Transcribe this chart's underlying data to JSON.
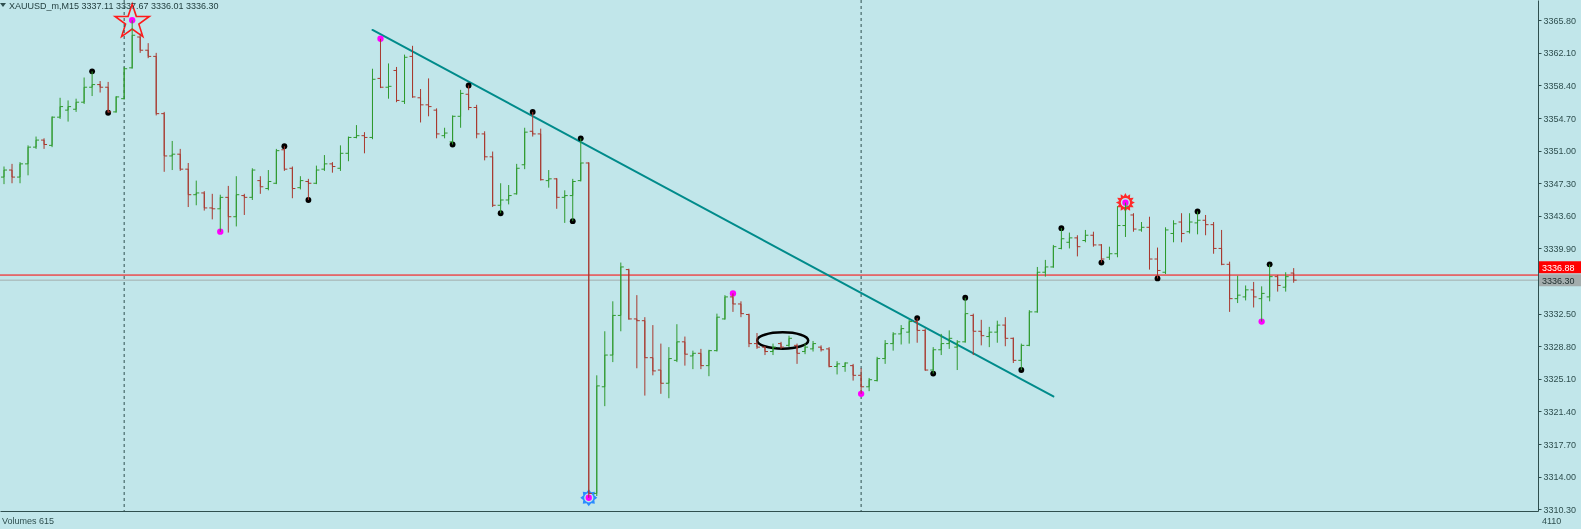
{
  "chart_data": {
    "type": "candlestick",
    "title": "XAUUSD_m,M15  3337.11 3337.67 3336.01 3336.30",
    "categories": [
      null,
      null,
      null,
      null,
      null,
      null,
      null,
      null,
      null,
      null,
      null,
      null,
      null,
      null,
      null,
      null,
      null,
      null,
      null,
      null,
      null,
      null,
      null,
      null,
      null,
      null,
      null,
      null,
      null,
      null,
      null,
      null,
      null,
      null,
      null,
      null,
      null,
      null,
      null,
      null,
      null,
      null,
      null,
      null,
      null,
      null,
      null,
      null,
      null,
      null,
      null,
      null,
      null,
      null,
      null,
      null,
      null,
      null,
      null,
      null,
      null,
      null,
      null,
      null,
      null,
      null,
      null,
      null,
      null,
      null,
      null,
      null,
      null,
      null,
      null,
      null,
      null,
      null,
      null,
      null,
      null,
      null,
      null,
      null,
      null,
      null,
      null,
      null,
      null,
      null,
      null,
      null,
      null,
      null,
      null,
      null,
      null,
      null,
      null,
      null,
      null,
      null,
      null,
      null,
      null,
      null,
      null,
      null,
      null,
      null,
      null,
      null,
      null,
      null,
      null,
      null,
      null,
      null,
      null,
      null,
      null,
      null,
      null,
      null,
      null,
      null,
      null,
      null,
      null,
      null,
      null,
      null,
      null,
      null,
      null,
      null,
      null,
      null,
      null,
      null,
      null,
      null,
      null,
      null,
      null,
      null,
      null,
      null,
      null,
      null,
      null,
      null,
      null,
      null,
      null,
      null,
      null,
      null,
      null,
      null,
      null,
      null,
      null,
      null,
      null,
      null,
      null,
      null,
      null,
      null,
      null,
      null,
      null,
      null,
      null,
      null,
      null,
      null,
      null,
      null,
      null,
      null,
      null,
      null,
      null,
      null,
      null,
      null,
      null,
      null,
      null,
      null
    ],
    "ohlc": [
      [
        3348.0,
        3349.2,
        3347.2,
        3348.8
      ],
      [
        3348.8,
        3349.5,
        3347.3,
        3348.0
      ],
      [
        3348.0,
        3349.7,
        3347.3,
        3349.5
      ],
      [
        3349.5,
        3351.6,
        3348.2,
        3351.4
      ],
      [
        3351.4,
        3352.6,
        3351.2,
        3352.2
      ],
      [
        3352.2,
        3352.4,
        3351.2,
        3351.7
      ],
      [
        3351.6,
        3354.9,
        3351.4,
        3354.8
      ],
      [
        3354.8,
        3357.0,
        3354.6,
        3356.0
      ],
      [
        3355.6,
        3356.7,
        3354.3,
        3356.0
      ],
      [
        3355.7,
        3356.9,
        3355.4,
        3356.5
      ],
      [
        3356.5,
        3359.3,
        3356.3,
        3358.2
      ],
      [
        3358.2,
        3360.0,
        3357.2,
        3358.5
      ],
      [
        3358.5,
        3358.9,
        3357.6,
        3358.2
      ],
      [
        3358.2,
        3358.8,
        3355.3,
        3355.4
      ],
      [
        3355.4,
        3357.2,
        3355.3,
        3357.1
      ],
      [
        3356.9,
        3360.5,
        3356.8,
        3360.3
      ],
      [
        3360.4,
        3365.8,
        3360.3,
        3364.1
      ],
      [
        3363.9,
        3364.3,
        3362.1,
        3362.4
      ],
      [
        3362.4,
        3363.2,
        3361.5,
        3361.7
      ],
      [
        3361.7,
        3362.1,
        3355.0,
        3355.2
      ],
      [
        3355.2,
        3355.4,
        3348.6,
        3350.4
      ],
      [
        3350.4,
        3352.1,
        3348.8,
        3350.6
      ],
      [
        3350.6,
        3351.2,
        3348.7,
        3348.9
      ],
      [
        3348.9,
        3349.6,
        3344.6,
        3346.0
      ],
      [
        3346.0,
        3347.6,
        3344.8,
        3346.2
      ],
      [
        3346.2,
        3346.4,
        3344.2,
        3344.5
      ],
      [
        3344.5,
        3346.1,
        3343.2,
        3344.4
      ],
      [
        3344.4,
        3346.0,
        3341.8,
        3345.7
      ],
      [
        3345.7,
        3347.0,
        3341.7,
        3343.5
      ],
      [
        3343.5,
        3348.1,
        3342.4,
        3346.0
      ],
      [
        3345.9,
        3346.1,
        3343.7,
        3345.7
      ],
      [
        3345.7,
        3349.0,
        3345.4,
        3348.8
      ],
      [
        3347.6,
        3348.1,
        3346.1,
        3346.9
      ],
      [
        3346.7,
        3348.8,
        3346.5,
        3347.5
      ],
      [
        3347.3,
        3351.2,
        3347.2,
        3351.0
      ],
      [
        3351.1,
        3351.5,
        3348.7,
        3348.9
      ],
      [
        3349.0,
        3349.2,
        3345.6,
        3346.7
      ],
      [
        3346.8,
        3348.1,
        3346.6,
        3347.6
      ],
      [
        3347.5,
        3347.8,
        3345.4,
        3347.3
      ],
      [
        3347.3,
        3349.3,
        3347.2,
        3348.8
      ],
      [
        3348.9,
        3350.5,
        3348.7,
        3349.5
      ],
      [
        3349.5,
        3349.7,
        3348.5,
        3349.2
      ],
      [
        3349.0,
        3351.6,
        3348.7,
        3350.7
      ],
      [
        3350.7,
        3352.6,
        3349.8,
        3352.5
      ],
      [
        3352.5,
        3353.9,
        3352.4,
        3352.7
      ],
      [
        3352.7,
        3353.1,
        3350.7,
        3352.5
      ],
      [
        3352.5,
        3360.3,
        3352.3,
        3359.1
      ],
      [
        3359.2,
        3363.7,
        3358.1,
        3358.2
      ],
      [
        3358.2,
        3360.9,
        3356.9,
        3358.3
      ],
      [
        3360.1,
        3360.5,
        3356.5,
        3356.7
      ],
      [
        3356.6,
        3361.9,
        3356.3,
        3361.6
      ],
      [
        3361.7,
        3362.9,
        3357.0,
        3357.1
      ],
      [
        3357.0,
        3358.0,
        3354.2,
        3356.2
      ],
      [
        3356.2,
        3359.2,
        3354.9,
        3356.0
      ],
      [
        3355.6,
        3355.8,
        3352.4,
        3352.9
      ],
      [
        3352.7,
        3353.6,
        3352.4,
        3353.0
      ],
      [
        3352.0,
        3355.0,
        3351.7,
        3354.9
      ],
      [
        3354.9,
        3357.9,
        3353.6,
        3357.5
      ],
      [
        3357.4,
        3358.4,
        3355.6,
        3355.9
      ],
      [
        3355.9,
        3356.2,
        3352.4,
        3352.9
      ],
      [
        3352.9,
        3353.2,
        3349.9,
        3350.3
      ],
      [
        3350.3,
        3350.9,
        3344.6,
        3344.8
      ],
      [
        3344.8,
        3347.3,
        3343.9,
        3345.4
      ],
      [
        3345.4,
        3347.1,
        3344.9,
        3345.9
      ],
      [
        3346.1,
        3349.5,
        3346.0,
        3349.0
      ],
      [
        3349.4,
        3353.6,
        3348.9,
        3353.1
      ],
      [
        3353.2,
        3355.4,
        3352.6,
        3352.9
      ],
      [
        3352.9,
        3353.5,
        3347.6,
        3347.7
      ],
      [
        3347.6,
        3348.8,
        3346.8,
        3347.8
      ],
      [
        3347.8,
        3347.9,
        3344.4,
        3345.7
      ],
      [
        3345.7,
        3346.5,
        3342.8,
        3345.9
      ],
      [
        3345.9,
        3347.8,
        3343.0,
        3347.5
      ],
      [
        3347.6,
        3352.4,
        3347.5,
        3349.6
      ],
      [
        3349.6,
        3349.7,
        3311.6,
        3312.1
      ],
      [
        3312.1,
        3325.5,
        3311.8,
        3324.3
      ],
      [
        3324.2,
        3330.5,
        3322.0,
        3327.8
      ],
      [
        3327.8,
        3333.9,
        3327.0,
        3332.3
      ],
      [
        3332.3,
        3338.3,
        3330.5,
        3337.8
      ],
      [
        3337.5,
        3337.6,
        3331.8,
        3331.9
      ],
      [
        3331.9,
        3334.6,
        3326.3,
        3331.7
      ],
      [
        3331.7,
        3332.1,
        3323.2,
        3327.5
      ],
      [
        3327.5,
        3331.2,
        3325.5,
        3326.0
      ],
      [
        3326.1,
        3329.1,
        3323.4,
        3324.6
      ],
      [
        3324.6,
        3328.7,
        3322.9,
        3327.4
      ],
      [
        3327.2,
        3331.3,
        3327.0,
        3329.3
      ],
      [
        3329.3,
        3329.9,
        3326.6,
        3327.9
      ],
      [
        3327.7,
        3328.3,
        3326.2,
        3328.0
      ],
      [
        3328.0,
        3328.5,
        3326.2,
        3326.6
      ],
      [
        3326.6,
        3328.4,
        3325.4,
        3328.3
      ],
      [
        3328.3,
        3332.5,
        3328.2,
        3332.1
      ],
      [
        3331.9,
        3334.6,
        3331.8,
        3334.4
      ],
      [
        3334.4,
        3334.8,
        3332.7,
        3333.6
      ],
      [
        3333.6,
        3333.9,
        3332.1,
        3332.5
      ],
      [
        3332.4,
        3332.5,
        3328.7,
        3329.1
      ],
      [
        3329.1,
        3330.3,
        3328.5,
        3328.7
      ],
      [
        3328.7,
        3328.8,
        3327.8,
        3328.2
      ],
      [
        3328.2,
        3329.1,
        3327.8,
        3328.7
      ],
      [
        3329.1,
        3329.3,
        3328.5,
        3328.7
      ],
      [
        3328.9,
        3330.0,
        3328.7,
        3329.7
      ],
      [
        3328.9,
        3329.1,
        3326.8,
        3328.0
      ],
      [
        3328.2,
        3329.1,
        3327.9,
        3328.7
      ],
      [
        3328.5,
        3329.4,
        3328.2,
        3329.1
      ],
      [
        3328.7,
        3328.9,
        3328.2,
        3328.4
      ],
      [
        3328.5,
        3328.7,
        3326.4,
        3326.5
      ],
      [
        3326.5,
        3327.1,
        3325.6,
        3326.8
      ],
      [
        3326.5,
        3327.0,
        3325.9,
        3326.9
      ],
      [
        3326.6,
        3326.8,
        3324.9,
        3325.5
      ],
      [
        3325.5,
        3326.3,
        3323.4,
        3324.2
      ],
      [
        3324.2,
        3325.2,
        3323.7,
        3325.0
      ],
      [
        3324.9,
        3327.6,
        3324.8,
        3327.4
      ],
      [
        3327.4,
        3329.5,
        3326.8,
        3329.1
      ],
      [
        3329.1,
        3330.4,
        3328.3,
        3330.2
      ],
      [
        3330.2,
        3331.2,
        3329.0,
        3330.8
      ],
      [
        3330.4,
        3331.8,
        3329.1,
        3331.6
      ],
      [
        3331.6,
        3332.0,
        3329.2,
        3330.6
      ],
      [
        3330.6,
        3330.8,
        3326.0,
        3326.1
      ],
      [
        3326.1,
        3328.7,
        3325.7,
        3328.4
      ],
      [
        3328.4,
        3330.2,
        3327.8,
        3329.1
      ],
      [
        3329.1,
        3330.6,
        3328.5,
        3329.7
      ],
      [
        3328.7,
        3329.5,
        3326.1,
        3329.3
      ],
      [
        3329.3,
        3334.3,
        3329.2,
        3332.5
      ],
      [
        3332.3,
        3332.5,
        3327.8,
        3330.5
      ],
      [
        3330.5,
        3331.8,
        3328.9,
        3330.0
      ],
      [
        3329.9,
        3331.0,
        3328.7,
        3330.4
      ],
      [
        3330.4,
        3331.7,
        3329.2,
        3331.2
      ],
      [
        3331.2,
        3332.1,
        3328.8,
        3329.7
      ],
      [
        3329.7,
        3329.8,
        3326.9,
        3327.2
      ],
      [
        3327.2,
        3329.1,
        3326.1,
        3328.9
      ],
      [
        3328.9,
        3332.9,
        3328.8,
        3332.7
      ],
      [
        3332.7,
        3337.8,
        3332.6,
        3337.2
      ],
      [
        3337.2,
        3338.6,
        3336.7,
        3337.8
      ],
      [
        3337.8,
        3340.3,
        3337.7,
        3340.1
      ],
      [
        3339.9,
        3342.2,
        3339.8,
        3341.0
      ],
      [
        3340.6,
        3341.7,
        3339.9,
        3341.1
      ],
      [
        3341.1,
        3341.4,
        3339.0,
        3340.1
      ],
      [
        3340.8,
        3342.0,
        3340.6,
        3341.4
      ],
      [
        3341.4,
        3341.8,
        3340.1,
        3340.3
      ],
      [
        3340.3,
        3340.4,
        3338.3,
        3338.7
      ],
      [
        3338.9,
        3340.1,
        3338.6,
        3339.3
      ],
      [
        3339.3,
        3344.7,
        3338.9,
        3342.5
      ],
      [
        3342.5,
        3345.1,
        3341.2,
        3344.7
      ],
      [
        3343.7,
        3343.9,
        3341.8,
        3342.1
      ],
      [
        3342.0,
        3342.9,
        3341.8,
        3342.3
      ],
      [
        3342.3,
        3343.5,
        3337.5,
        3338.7
      ],
      [
        3338.7,
        3340.0,
        3336.5,
        3337.4
      ],
      [
        3337.2,
        3342.3,
        3337.0,
        3342.0
      ],
      [
        3341.6,
        3343.1,
        3340.6,
        3342.7
      ],
      [
        3342.9,
        3343.9,
        3340.6,
        3341.6
      ],
      [
        3341.8,
        3343.9,
        3341.6,
        3342.9
      ],
      [
        3342.8,
        3344.1,
        3341.5,
        3343.1
      ],
      [
        3343.1,
        3343.7,
        3341.4,
        3342.6
      ],
      [
        3342.6,
        3342.9,
        3339.3,
        3339.9
      ],
      [
        3339.9,
        3342.0,
        3338.0,
        3338.1
      ],
      [
        3338.1,
        3338.4,
        3332.7,
        3334.2
      ],
      [
        3334.2,
        3336.8,
        3333.7,
        3334.6
      ],
      [
        3334.4,
        3335.7,
        3334.0,
        3335.2
      ],
      [
        3335.2,
        3336.1,
        3333.2,
        3334.4
      ],
      [
        3334.2,
        3335.6,
        3331.6,
        3334.8
      ],
      [
        3334.4,
        3338.1,
        3333.9,
        3336.7
      ],
      [
        3336.7,
        3336.9,
        3335.0,
        3335.7
      ],
      [
        3335.5,
        3337.2,
        3335.0,
        3336.7
      ],
      [
        3337.11,
        3337.67,
        3336.01,
        3336.3
      ],
      null,
      null,
      null,
      null,
      null,
      null,
      null,
      null,
      null,
      null,
      null,
      null,
      null,
      null,
      null,
      null,
      null,
      null,
      null,
      null,
      null,
      null,
      null,
      null,
      null,
      null,
      null,
      null,
      null,
      null
    ],
    "series": [
      {
        "type": "line",
        "color": "#008b8b",
        "values": [
          null,
          null,
          null,
          null,
          null,
          null,
          null,
          null,
          null,
          null,
          null,
          null,
          null,
          null,
          null,
          null,
          null,
          null,
          null,
          null,
          null,
          null,
          null,
          null,
          null,
          null,
          null,
          null,
          null,
          null,
          null,
          null,
          null,
          null,
          null,
          null,
          null,
          null,
          null,
          null,
          null,
          null,
          null,
          null,
          null,
          null,
          3364.7,
          null,
          null,
          null,
          null,
          null,
          null,
          null,
          null,
          null,
          null,
          null,
          null,
          null,
          null,
          null,
          null,
          null,
          null,
          null,
          null,
          null,
          null,
          null,
          null,
          null,
          null,
          null,
          null,
          null,
          null,
          null,
          null,
          null,
          null,
          null,
          null,
          null,
          null,
          null,
          null,
          null,
          null,
          null,
          null,
          null,
          null,
          null,
          null,
          null,
          null,
          null,
          null,
          null,
          null,
          null,
          null,
          null,
          null,
          null,
          null,
          null,
          null,
          null,
          null,
          null,
          null,
          null,
          null,
          null,
          null,
          null,
          null,
          null,
          null,
          null,
          null,
          null,
          null,
          null,
          null,
          null,
          null,
          null,
          null,
          3323.1,
          null,
          null,
          null,
          null,
          null,
          null,
          null,
          null,
          null,
          null,
          null,
          null,
          null,
          null,
          null,
          null,
          null,
          null,
          null,
          null,
          null,
          null,
          null,
          null,
          null,
          null,
          null,
          null,
          null,
          null,
          null,
          null,
          null,
          null,
          null,
          null,
          null,
          null,
          null,
          null,
          null,
          null,
          null,
          null,
          null,
          null,
          null,
          null,
          null,
          null,
          null,
          null,
          null,
          null,
          null,
          null,
          null,
          null,
          null,
          null
        ]
      },
      {
        "type": "scatter",
        "color": "#000000",
        "marker": "circle",
        "values": [
          null,
          null,
          null,
          null,
          null,
          null,
          null,
          null,
          null,
          null,
          null,
          3360.0,
          null,
          3355.3,
          null,
          null,
          null,
          null,
          null,
          null,
          null,
          null,
          null,
          null,
          null,
          null,
          null,
          null,
          null,
          null,
          null,
          null,
          null,
          null,
          null,
          3351.5,
          null,
          null,
          3345.4,
          null,
          null,
          null,
          null,
          null,
          null,
          null,
          null,
          null,
          null,
          null,
          null,
          null,
          null,
          null,
          null,
          null,
          3351.7,
          null,
          3358.4,
          null,
          null,
          null,
          3343.9,
          null,
          null,
          null,
          3355.4,
          null,
          null,
          null,
          null,
          3343.0,
          3352.4,
          null,
          null,
          null,
          null,
          null,
          null,
          null,
          null,
          null,
          null,
          null,
          null,
          null,
          null,
          null,
          null,
          null,
          null,
          null,
          null,
          null,
          null,
          null,
          null,
          null,
          null,
          null,
          null,
          null,
          null,
          null,
          null,
          null,
          null,
          null,
          null,
          null,
          null,
          null,
          null,
          null,
          3332.0,
          null,
          3325.7,
          null,
          null,
          null,
          3334.3,
          null,
          null,
          null,
          null,
          null,
          null,
          3326.1,
          null,
          null,
          null,
          null,
          3342.2,
          null,
          null,
          null,
          null,
          3338.3,
          null,
          null,
          null,
          null,
          null,
          null,
          3336.5,
          null,
          null,
          null,
          null,
          3344.1,
          null,
          null,
          null,
          null,
          null,
          null,
          null,
          null,
          3338.1,
          null,
          null,
          null,
          null,
          null,
          null,
          null,
          null,
          null,
          null,
          null,
          null,
          null,
          null,
          null,
          null,
          null,
          null,
          null,
          null,
          null,
          null,
          null,
          null,
          null,
          null,
          null,
          null,
          null,
          null,
          null,
          null,
          null
        ]
      },
      {
        "type": "scatter",
        "color": "#ff00ff",
        "marker": "circle",
        "values": [
          null,
          null,
          null,
          null,
          null,
          null,
          null,
          null,
          null,
          null,
          null,
          null,
          null,
          null,
          null,
          null,
          3365.8,
          null,
          null,
          null,
          null,
          null,
          null,
          null,
          null,
          null,
          null,
          3341.8,
          null,
          null,
          null,
          null,
          null,
          null,
          null,
          null,
          null,
          null,
          null,
          null,
          null,
          null,
          null,
          null,
          null,
          null,
          null,
          3363.7,
          null,
          null,
          null,
          null,
          null,
          null,
          null,
          null,
          null,
          null,
          null,
          null,
          null,
          null,
          null,
          null,
          null,
          null,
          null,
          null,
          null,
          null,
          null,
          null,
          null,
          3311.6,
          null,
          null,
          null,
          null,
          null,
          null,
          null,
          null,
          null,
          null,
          null,
          null,
          null,
          null,
          null,
          null,
          null,
          3334.8,
          null,
          null,
          null,
          null,
          null,
          null,
          null,
          null,
          null,
          null,
          null,
          null,
          null,
          null,
          null,
          3323.4,
          null,
          null,
          null,
          null,
          null,
          null,
          null,
          null,
          null,
          null,
          null,
          null,
          null,
          null,
          null,
          null,
          null,
          null,
          null,
          null,
          null,
          null,
          null,
          null,
          null,
          null,
          null,
          null,
          null,
          null,
          null,
          null,
          3345.1,
          null,
          null,
          null,
          null,
          null,
          null,
          null,
          null,
          null,
          null,
          null,
          null,
          null,
          null,
          null,
          null,
          3331.6,
          null,
          null,
          null,
          null,
          null,
          null,
          null,
          null,
          null,
          null,
          null,
          null,
          null,
          null,
          null,
          null,
          null,
          null,
          null,
          null,
          null,
          null,
          null,
          null,
          null,
          null,
          null,
          null,
          null,
          null,
          null,
          null,
          null,
          null
        ]
      }
    ],
    "ylim": [
      3310.1,
      3368.1
    ],
    "yticks": [
      {
        "value": 3310.3,
        "label": "3310.30"
      },
      {
        "value": 3314.0,
        "label": "3314.00"
      },
      {
        "value": 3317.7,
        "label": "3317.70"
      },
      {
        "value": 3321.4,
        "label": "3321.40"
      },
      {
        "value": 3325.1,
        "label": "3325.10"
      },
      {
        "value": 3328.8,
        "label": "3328.80"
      },
      {
        "value": 3332.5,
        "label": "3332.50"
      },
      {
        "value": 3339.9,
        "label": "3339.90"
      },
      {
        "value": 3343.6,
        "label": "3343.60"
      },
      {
        "value": 3347.3,
        "label": "3347.30"
      },
      {
        "value": 3351.0,
        "label": "3351.00"
      },
      {
        "value": 3354.7,
        "label": "3354.70"
      },
      {
        "value": 3358.4,
        "label": "3358.40"
      },
      {
        "value": 3362.1,
        "label": "3362.10"
      },
      {
        "value": 3365.8,
        "label": "3365.80"
      }
    ],
    "ref_lines": [
      {
        "axis": "y",
        "value": 3336.88,
        "label": "3336.88",
        "color": "#ff0000"
      },
      {
        "axis": "y",
        "value": 3336.3,
        "label": "3336.30",
        "color": "#a3adad"
      }
    ],
    "annotations": [
      "Volumes 615",
      "4110"
    ]
  }
}
